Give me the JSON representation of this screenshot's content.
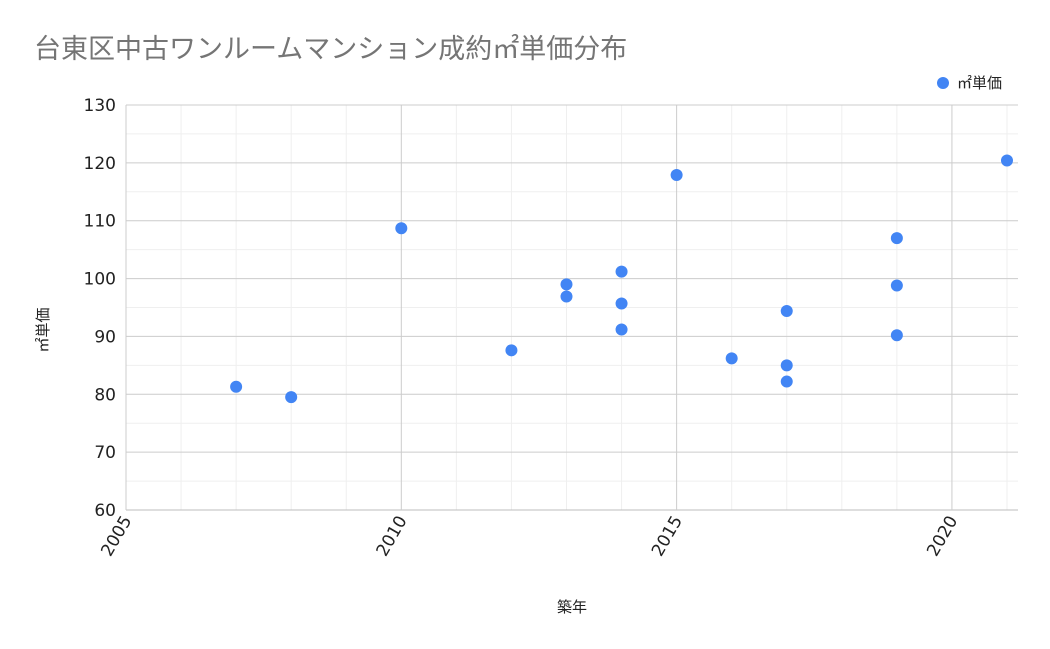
{
  "chart_data": {
    "type": "scatter",
    "title": "台東区中古ワンルームマンション成約㎡単価分布",
    "xlabel": "築年",
    "ylabel": "㎡単価",
    "xlim": [
      2005,
      2021.2
    ],
    "ylim": [
      60,
      130
    ],
    "xticks": [
      2005,
      2010,
      2015,
      2020
    ],
    "yticks": [
      60,
      70,
      80,
      90,
      100,
      110,
      120,
      130
    ],
    "grid": true,
    "legend_position": "top-right",
    "series": [
      {
        "name": "㎡単価",
        "color": "#4285f4",
        "points": [
          {
            "x": 2007,
            "y": 81.3
          },
          {
            "x": 2008,
            "y": 79.5
          },
          {
            "x": 2010,
            "y": 108.7
          },
          {
            "x": 2012,
            "y": 87.6
          },
          {
            "x": 2013,
            "y": 99.0
          },
          {
            "x": 2013,
            "y": 96.9
          },
          {
            "x": 2014,
            "y": 101.2
          },
          {
            "x": 2014,
            "y": 95.7
          },
          {
            "x": 2014,
            "y": 91.2
          },
          {
            "x": 2015,
            "y": 117.9
          },
          {
            "x": 2016,
            "y": 86.2
          },
          {
            "x": 2017,
            "y": 94.4
          },
          {
            "x": 2017,
            "y": 85.0
          },
          {
            "x": 2017,
            "y": 82.2
          },
          {
            "x": 2019,
            "y": 107.0
          },
          {
            "x": 2019,
            "y": 98.8
          },
          {
            "x": 2019,
            "y": 90.2
          },
          {
            "x": 2021,
            "y": 120.4
          }
        ]
      }
    ]
  }
}
